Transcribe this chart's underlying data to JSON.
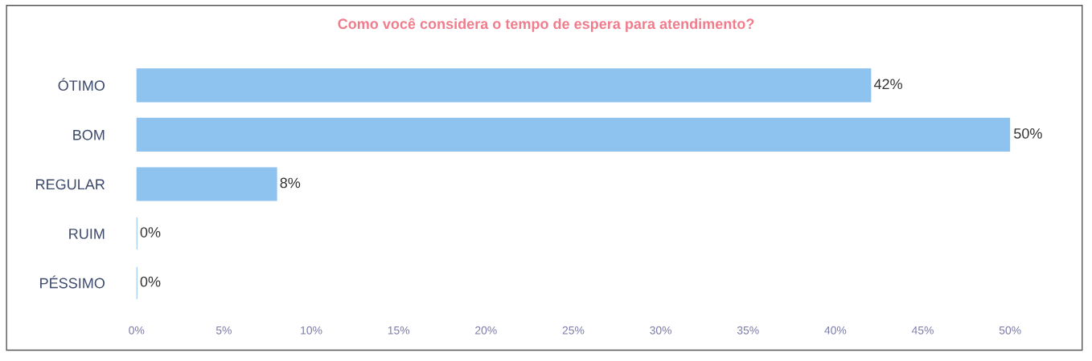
{
  "chart_data": {
    "type": "bar",
    "orientation": "horizontal",
    "title": "Como você considera o tempo de espera para atendimento?",
    "categories": [
      "ÓTIMO",
      "BOM",
      "REGULAR",
      "RUIM",
      "PÉSSIMO"
    ],
    "values": [
      42,
      50,
      8,
      0,
      0
    ],
    "color": "#8ec2ef",
    "value_labels": [
      "42%",
      "50%",
      "8%",
      "0%",
      "0%"
    ],
    "xlim": [
      0,
      50
    ],
    "xticks": [
      {
        "value": 0,
        "label": "0%"
      },
      {
        "value": 5,
        "label": "5%"
      },
      {
        "value": 10,
        "label": "10%"
      },
      {
        "value": 15,
        "label": "15%"
      },
      {
        "value": 20,
        "label": "20%"
      },
      {
        "value": 25,
        "label": "25%"
      },
      {
        "value": 30,
        "label": "30%"
      },
      {
        "value": 35,
        "label": "35%"
      },
      {
        "value": 40,
        "label": "40%"
      },
      {
        "value": 45,
        "label": "45%"
      },
      {
        "value": 50,
        "label": "50%"
      }
    ],
    "grid": false,
    "legend": false
  }
}
